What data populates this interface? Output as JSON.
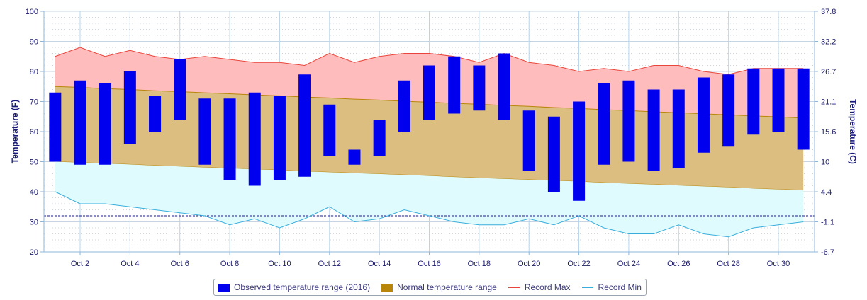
{
  "chart_data": {
    "type": "bar",
    "title": "",
    "xlabel": "",
    "ylabel_left": "Temperature (F)",
    "ylabel_right": "Temperature (C)",
    "ylim": [
      20,
      100
    ],
    "yticks_left": [
      "20",
      "30",
      "40",
      "50",
      "60",
      "70",
      "80",
      "90",
      "100"
    ],
    "yticks_right": [
      "-6.7",
      "-1.1",
      "4.4",
      "10",
      "15.6",
      "21.1",
      "26.7",
      "32.2",
      "37.8"
    ],
    "x_tick_labels": [
      "Oct 2",
      "Oct 4",
      "Oct 6",
      "Oct 8",
      "Oct 10",
      "Oct 12",
      "Oct 14",
      "Oct 16",
      "Oct 18",
      "Oct 20",
      "Oct 22",
      "Oct 24",
      "Oct 26",
      "Oct 28",
      "Oct 30"
    ],
    "x_tick_days": [
      2,
      4,
      6,
      8,
      10,
      12,
      14,
      16,
      18,
      20,
      22,
      24,
      26,
      28,
      30
    ],
    "days": [
      1,
      2,
      3,
      4,
      5,
      6,
      7,
      8,
      9,
      10,
      11,
      12,
      13,
      14,
      15,
      16,
      17,
      18,
      19,
      20,
      21,
      22,
      23,
      24,
      25,
      26,
      27,
      28,
      29,
      30,
      31
    ],
    "freezing_line": 32,
    "grid": true,
    "legend_position": "bottom-center",
    "series": [
      {
        "name": "Observed temperature range (2016)",
        "type": "range-bar",
        "color": "#0000ee",
        "low": [
          50,
          49,
          49,
          56,
          60,
          64,
          49,
          44,
          42,
          44,
          45,
          52,
          49,
          52,
          60,
          64,
          66,
          67,
          64,
          47,
          40,
          37,
          49,
          50,
          47,
          48,
          53,
          55,
          59,
          60,
          54
        ],
        "high": [
          73,
          77,
          76,
          80,
          72,
          84,
          71,
          71,
          73,
          72,
          79,
          69,
          54,
          64,
          77,
          82,
          85,
          82,
          86,
          67,
          65,
          70,
          76,
          77,
          74,
          74,
          78,
          79,
          81,
          81,
          81
        ]
      },
      {
        "name": "Normal temperature range",
        "type": "range-area",
        "color": "#b8860b",
        "low": [
          50,
          49.7,
          49.4,
          49.1,
          48.7,
          48.4,
          48.1,
          47.8,
          47.5,
          47.2,
          46.8,
          46.5,
          46.2,
          45.9,
          45.6,
          45.3,
          44.9,
          44.6,
          44.3,
          44,
          43.7,
          43.4,
          43,
          42.7,
          42.4,
          42.1,
          41.8,
          41.5,
          41.1,
          40.8,
          40.5
        ],
        "high": [
          75,
          74.7,
          74.3,
          74,
          73.6,
          73.3,
          72.9,
          72.6,
          72.2,
          71.9,
          71.5,
          71.2,
          70.8,
          70.5,
          70.1,
          69.8,
          69.4,
          69.1,
          68.7,
          68.4,
          68,
          67.7,
          67.3,
          67,
          66.6,
          66.3,
          65.9,
          65.6,
          65.2,
          64.9,
          64.5
        ]
      },
      {
        "name": "Record Max",
        "type": "line",
        "color": "#e8463c",
        "values": [
          85,
          88,
          85,
          87,
          85,
          84,
          85,
          84,
          83,
          83,
          82,
          86,
          83,
          85,
          86,
          86,
          85,
          83,
          86,
          83,
          82,
          80,
          81,
          80,
          82,
          82,
          80,
          79,
          81,
          81,
          81
        ]
      },
      {
        "name": "Record Min",
        "type": "line",
        "color": "#3aaedb",
        "values": [
          40,
          36,
          36,
          35,
          34,
          33,
          32,
          29,
          31,
          28,
          31,
          35,
          30,
          31,
          34,
          32,
          30,
          29,
          29,
          31,
          29,
          32,
          28,
          26,
          26,
          29,
          26,
          25,
          28,
          29,
          30
        ]
      }
    ]
  },
  "legend": {
    "items": [
      {
        "label": "Observed temperature range (2016)",
        "color": "#0000ee"
      },
      {
        "label": "Normal temperature range",
        "color": "#b8860b"
      },
      {
        "label": "Record Max",
        "color": "#e8463c"
      },
      {
        "label": "Record Min",
        "color": "#3aaedb"
      }
    ]
  }
}
